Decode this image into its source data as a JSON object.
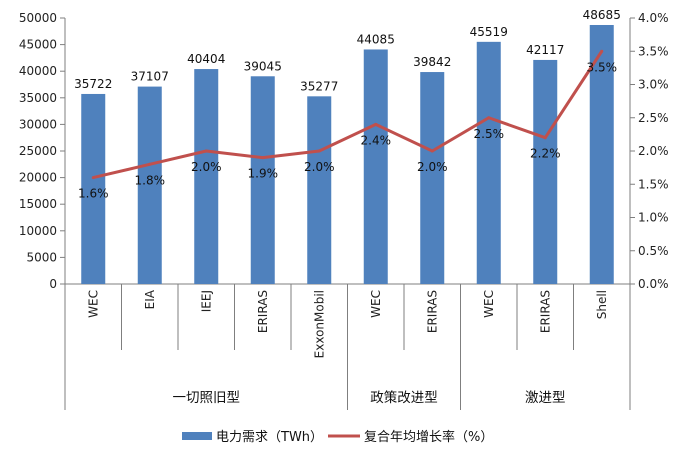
{
  "chart_data": {
    "type": "bar+line",
    "categories": [
      "WEC",
      "EIA",
      "IEEJ",
      "ERIRAS",
      "ExxonMobil",
      "WEC",
      "ERIRAS",
      "WEC",
      "ERIRAS",
      "Shell"
    ],
    "groups": [
      {
        "label": "一切照旧型",
        "count": 5
      },
      {
        "label": "政策改进型",
        "count": 2
      },
      {
        "label": "激进型",
        "count": 3
      }
    ],
    "series": [
      {
        "name": "电力需求（TWh）",
        "type": "bar",
        "axis": "left",
        "color": "#4F81BD",
        "values": [
          35722,
          37107,
          40404,
          39045,
          35277,
          44085,
          39842,
          45519,
          42117,
          48685
        ]
      },
      {
        "name": "复合年均增长率（%）",
        "type": "line",
        "axis": "right",
        "color": "#C0504D",
        "values": [
          1.6,
          1.8,
          2.0,
          1.9,
          2.0,
          2.4,
          2.0,
          2.5,
          2.2,
          3.5
        ],
        "labels": [
          "1.6%",
          "1.8%",
          "2.0%",
          "1.9%",
          "2.0%",
          "2.4%",
          "2.0%",
          "2.5%",
          "2.2%",
          "3.5%"
        ]
      }
    ],
    "y_left": {
      "min": 0,
      "max": 50000,
      "step": 5000
    },
    "y_right": {
      "min": 0,
      "max": 4.0,
      "step": 0.5,
      "format": "percent_1dp"
    },
    "grid": false,
    "legend": "bottom"
  }
}
